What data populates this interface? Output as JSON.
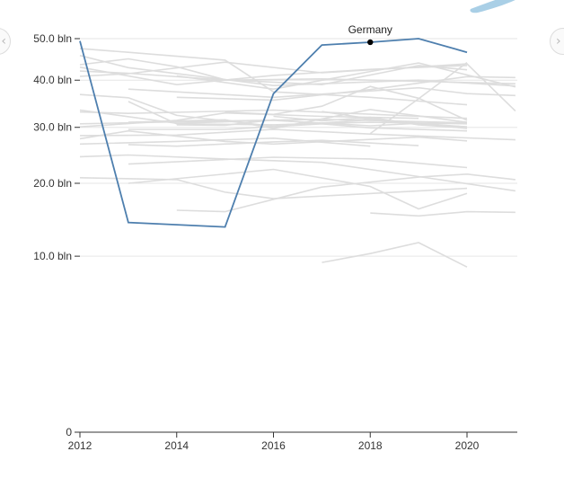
{
  "nav": {
    "prev_icon": "chevron-left-icon",
    "next_icon": "chevron-right-icon",
    "prev_glyph": "‹",
    "next_glyph": "›"
  },
  "decoration": {
    "blob_color": "#a9cfe6"
  },
  "chart_data": {
    "type": "line",
    "title": "",
    "xlabel": "",
    "ylabel": "",
    "x_domain": [
      2012,
      2021
    ],
    "x_ticks": [
      2012,
      2014,
      2016,
      2018,
      2020
    ],
    "y_domain": [
      0,
      50
    ],
    "y_scale": "sqrt",
    "y_ticks": [
      {
        "value": 0,
        "label": "0"
      },
      {
        "value": 10,
        "label": "10.0 bln"
      },
      {
        "value": 20,
        "label": "20.0 bln"
      },
      {
        "value": 30,
        "label": "30.0 bln"
      },
      {
        "value": 40,
        "label": "40.0 bln"
      },
      {
        "value": 50,
        "label": "50.0 bln"
      }
    ],
    "grid": true,
    "colors": {
      "highlight": "#4e7fae",
      "background_series": "#dddddd",
      "hover_dot": "#000000"
    },
    "highlight": {
      "name": "Germany",
      "x": [
        2012,
        2013,
        2015,
        2016,
        2017,
        2018,
        2019,
        2020
      ],
      "y": [
        49.4,
        14.2,
        13.6,
        37.0,
        48.4,
        49.1,
        50.0,
        46.6
      ],
      "hover": {
        "x": 2018,
        "y": 49.1,
        "label": "Germany"
      }
    },
    "series": [
      {
        "x": [
          2012,
          2013,
          2016,
          2019,
          2021
        ],
        "y": [
          45.8,
          42.9,
          38.8,
          40.0,
          38.7
        ]
      },
      {
        "x": [
          2012,
          2013,
          2015,
          2017,
          2021
        ],
        "y": [
          42.1,
          41.6,
          40.0,
          40.3,
          39.2
        ]
      },
      {
        "x": [
          2013,
          2016,
          2019,
          2020,
          2021
        ],
        "y": [
          38.0,
          36.2,
          38.3,
          37.0,
          36.6
        ]
      },
      {
        "x": [
          2012,
          2013,
          2016,
          2020
        ],
        "y": [
          33.1,
          32.8,
          33.5,
          31.8
        ]
      },
      {
        "x": [
          2012,
          2014,
          2017,
          2020
        ],
        "y": [
          30.7,
          31.1,
          31.6,
          30.9
        ]
      },
      {
        "x": [
          2013,
          2015,
          2017,
          2018,
          2020
        ],
        "y": [
          29.6,
          29.6,
          30.7,
          31.7,
          29.8
        ]
      },
      {
        "x": [
          2012,
          2014,
          2016,
          2018,
          2021
        ],
        "y": [
          28.4,
          28.5,
          29.6,
          28.7,
          27.6
        ]
      },
      {
        "x": [
          2012,
          2013,
          2015,
          2017,
          2019,
          2021
        ],
        "y": [
          24.5,
          24.8,
          24.1,
          23.5,
          21.1,
          18.8
        ]
      },
      {
        "x": [
          2013,
          2016,
          2018,
          2020
        ],
        "y": [
          23.2,
          24.4,
          24.1,
          22.6
        ]
      },
      {
        "x": [
          2012,
          2014,
          2015,
          2016,
          2020
        ],
        "y": [
          20.9,
          20.6,
          18.6,
          17.6,
          19.2
        ]
      },
      {
        "x": [
          2014,
          2015,
          2017,
          2019,
          2020,
          2021
        ],
        "y": [
          15.9,
          15.7,
          19.4,
          21.0,
          21.5,
          20.6
        ]
      },
      {
        "x": [
          2017,
          2018,
          2019,
          2020
        ],
        "y": [
          9.3,
          10.3,
          11.6,
          8.8
        ]
      },
      {
        "x": [
          2012,
          2013,
          2015,
          2016,
          2018,
          2020
        ],
        "y": [
          47.5,
          46.6,
          44.7,
          37.4,
          36.2,
          34.6
        ]
      },
      {
        "x": [
          2014,
          2016,
          2018,
          2019,
          2021
        ],
        "y": [
          41.0,
          38.0,
          42.0,
          44.0,
          38.5
        ]
      },
      {
        "x": [
          2012,
          2013,
          2014,
          2016,
          2018,
          2020
        ],
        "y": [
          36.8,
          36.1,
          32.4,
          30.2,
          31.5,
          29.9
        ]
      },
      {
        "x": [
          2013,
          2015,
          2016,
          2018,
          2020
        ],
        "y": [
          31.0,
          31.5,
          29.8,
          33.6,
          31.0
        ]
      },
      {
        "x": [
          2012,
          2014,
          2016,
          2018
        ],
        "y": [
          26.8,
          27.3,
          27.9,
          26.4
        ]
      },
      {
        "x": [
          2013,
          2016,
          2018,
          2019,
          2020
        ],
        "y": [
          20.0,
          22.3,
          19.5,
          16.1,
          18.4
        ]
      },
      {
        "x": [
          2016,
          2017,
          2018,
          2019,
          2020
        ],
        "y": [
          32.2,
          31.3,
          32.0,
          30.5,
          29.9
        ]
      },
      {
        "x": [
          2018,
          2019,
          2020,
          2021
        ],
        "y": [
          15.5,
          15.1,
          15.7,
          15.6
        ]
      },
      {
        "x": [
          2012,
          2013,
          2015,
          2017,
          2020,
          2021
        ],
        "y": [
          40.9,
          41.5,
          44.2,
          41.7,
          43.8,
          33.3
        ]
      },
      {
        "x": [
          2012,
          2013,
          2014,
          2015,
          2017,
          2019,
          2020
        ],
        "y": [
          43.6,
          45.0,
          43.1,
          40.1,
          39.0,
          43.4,
          42.4
        ]
      },
      {
        "x": [
          2012,
          2014,
          2016,
          2018,
          2019,
          2020
        ],
        "y": [
          33.5,
          30.8,
          31.4,
          30.3,
          30.8,
          30.1
        ]
      },
      {
        "x": [
          2013,
          2014,
          2016,
          2017,
          2018,
          2020
        ],
        "y": [
          35.3,
          30.7,
          30.5,
          30.8,
          31.0,
          30.7
        ]
      },
      {
        "x": [
          2014,
          2016,
          2018,
          2020,
          2021
        ],
        "y": [
          36.2,
          35.6,
          37.9,
          40.8,
          40.6
        ]
      },
      {
        "x": [
          2012,
          2014,
          2015,
          2017,
          2019
        ],
        "y": [
          30.1,
          31.4,
          32.9,
          32.2,
          31.8
        ]
      },
      {
        "x": [
          2012,
          2014,
          2016,
          2018,
          2020
        ],
        "y": [
          43.0,
          39.0,
          41.1,
          42.5,
          43.4
        ]
      },
      {
        "x": [
          2013,
          2014,
          2016,
          2017,
          2019
        ],
        "y": [
          26.7,
          26.4,
          27.2,
          27.5,
          26.5
        ]
      },
      {
        "x": [
          2012,
          2013,
          2015,
          2016,
          2019,
          2020
        ],
        "y": [
          27.8,
          29.3,
          27.3,
          26.8,
          28.1,
          27.4
        ]
      },
      {
        "x": [
          2014,
          2015,
          2016,
          2018,
          2020
        ],
        "y": [
          30.5,
          30.4,
          31.5,
          29.9,
          29.3
        ]
      },
      {
        "x": [
          2017,
          2018,
          2019,
          2020
        ],
        "y": [
          33.2,
          31.7,
          30.6,
          30.1
        ]
      },
      {
        "x": [
          2018,
          2019,
          2020
        ],
        "y": [
          28.8,
          35.9,
          44.1
        ]
      },
      {
        "x": [
          2015,
          2016,
          2017,
          2018,
          2019,
          2020
        ],
        "y": [
          33.1,
          32.6,
          34.3,
          38.6,
          36.0,
          31.4
        ]
      }
    ]
  }
}
